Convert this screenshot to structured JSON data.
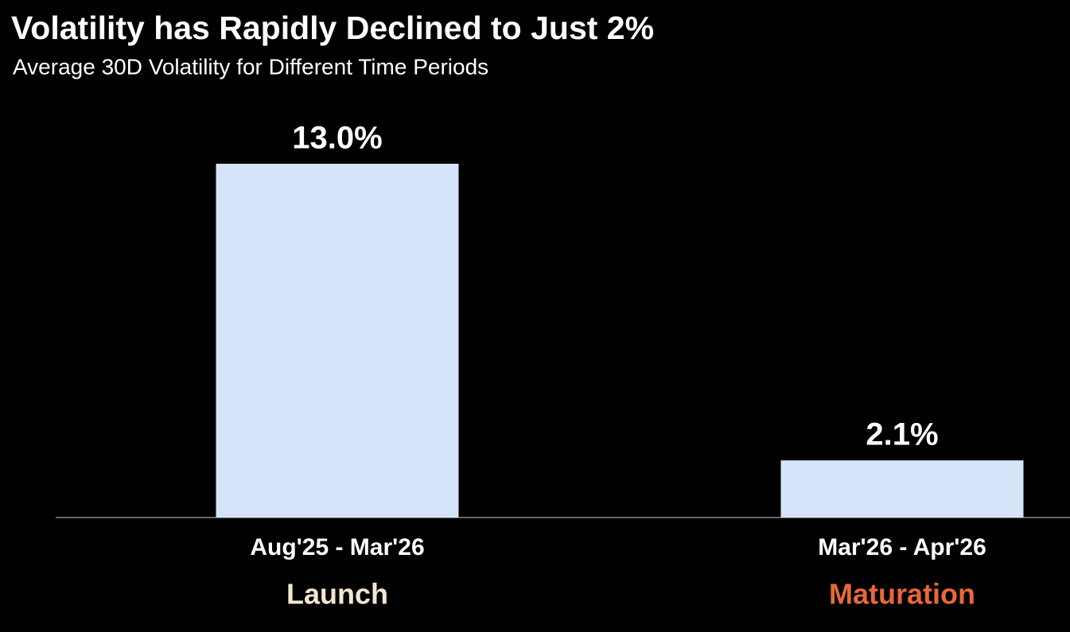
{
  "chart_data": {
    "type": "bar",
    "title": "Volatility has Rapidly Declined to Just 2%",
    "subtitle": "Average 30D Volatility for Different Time Periods",
    "categories": [
      "Aug'25 - Mar'26",
      "Mar'26 - Apr'26"
    ],
    "values": [
      13.0,
      2.1
    ],
    "value_labels": [
      "13.0%",
      "2.1%"
    ],
    "color": "#d6e4fa",
    "phases": [
      "Launch",
      "Maturation"
    ],
    "phase_colors": [
      "#f3e6d3",
      "#e8683a"
    ]
  }
}
